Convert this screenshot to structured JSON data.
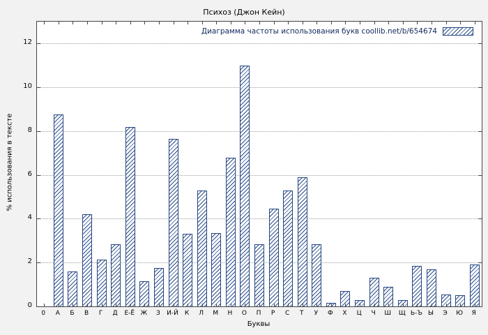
{
  "chart_data": {
    "type": "bar",
    "title": "Психоз (Джон Кейн)",
    "legend": "Диаграмма частоты использования букв coollib.net/b/654674",
    "xlabel": "Буквы",
    "ylabel": "% использования в тексте",
    "categories": [
      "0",
      "А",
      "Б",
      "В",
      "Г",
      "Д",
      "Е-Ё",
      "Ж",
      "З",
      "И-Й",
      "К",
      "Л",
      "М",
      "Н",
      "О",
      "П",
      "Р",
      "С",
      "Т",
      "У",
      "Ф",
      "Х",
      "Ц",
      "Ч",
      "Ш",
      "Щ",
      "Ь-Ъ",
      "Ы",
      "Э",
      "Ю",
      "Я"
    ],
    "values": [
      0,
      8.75,
      1.6,
      4.2,
      2.15,
      2.85,
      8.2,
      1.15,
      1.75,
      7.65,
      3.3,
      5.3,
      3.35,
      6.8,
      11.0,
      2.85,
      4.45,
      5.3,
      5.9,
      2.85,
      0.15,
      0.7,
      0.3,
      1.3,
      0.9,
      0.3,
      1.85,
      1.7,
      0.55,
      0.5,
      1.9
    ],
    "ylim": [
      0,
      13
    ],
    "yticks": [
      0,
      2,
      4,
      6,
      8,
      10,
      12
    ],
    "bar_color": "#2b4d8c",
    "background": "#f2f2f2",
    "grid": true,
    "legend_position": "top-right"
  }
}
